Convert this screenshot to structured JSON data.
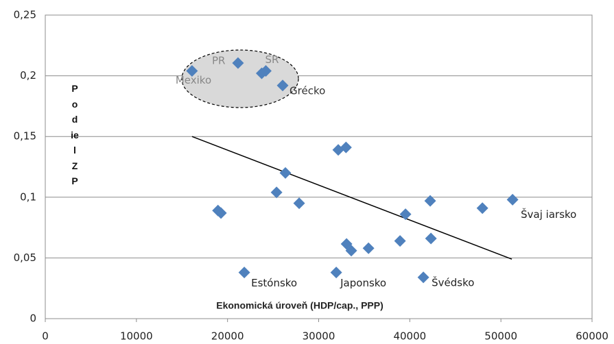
{
  "chart_data": {
    "type": "scatter",
    "x_label": "Ekonomická úroveň (HDP/cap., PPP)",
    "y_label": "Podiel ZP",
    "x": [
      16100,
      21150,
      23750,
      24200,
      26050,
      32150,
      33000,
      26350,
      25380,
      18950,
      19280,
      27860,
      21840,
      33060,
      33580,
      31930,
      35470,
      38930,
      39530,
      42240,
      42320,
      41490,
      47970,
      51280
    ],
    "values": [
      0.204,
      0.2105,
      0.202,
      0.204,
      0.192,
      0.139,
      0.141,
      0.12,
      0.104,
      0.089,
      0.087,
      0.095,
      0.038,
      0.0615,
      0.056,
      0.038,
      0.058,
      0.064,
      0.086,
      0.097,
      0.066,
      0.034,
      0.091,
      0.098
    ],
    "point_labels": [
      "Mexiko",
      "PR",
      null,
      "SR",
      "Grécko",
      null,
      null,
      null,
      null,
      null,
      null,
      null,
      "Estónsko",
      null,
      null,
      "Japonsko",
      null,
      null,
      null,
      null,
      null,
      "Švédsko",
      null,
      "Švaj iarsko"
    ],
    "color": "#4f81bd",
    "trend_line": {
      "x": [
        16100,
        51200
      ],
      "values": [
        0.15,
        0.049
      ],
      "color": "#000000"
    },
    "xlim": [
      0,
      60000
    ],
    "xticks": [
      0,
      10000,
      20000,
      30000,
      40000,
      50000,
      60000
    ],
    "ylim": [
      0,
      0.25
    ],
    "yticks": [
      0,
      {
        "value": 0.05,
        "label": "0,05"
      },
      {
        "value": 0.1,
        "label": "0,1"
      },
      {
        "value": 0.15,
        "label": "0,15"
      },
      {
        "value": 0.2,
        "label": "0,2"
      },
      {
        "value": 0.25,
        "label": "0,25"
      }
    ],
    "grid": true
  }
}
